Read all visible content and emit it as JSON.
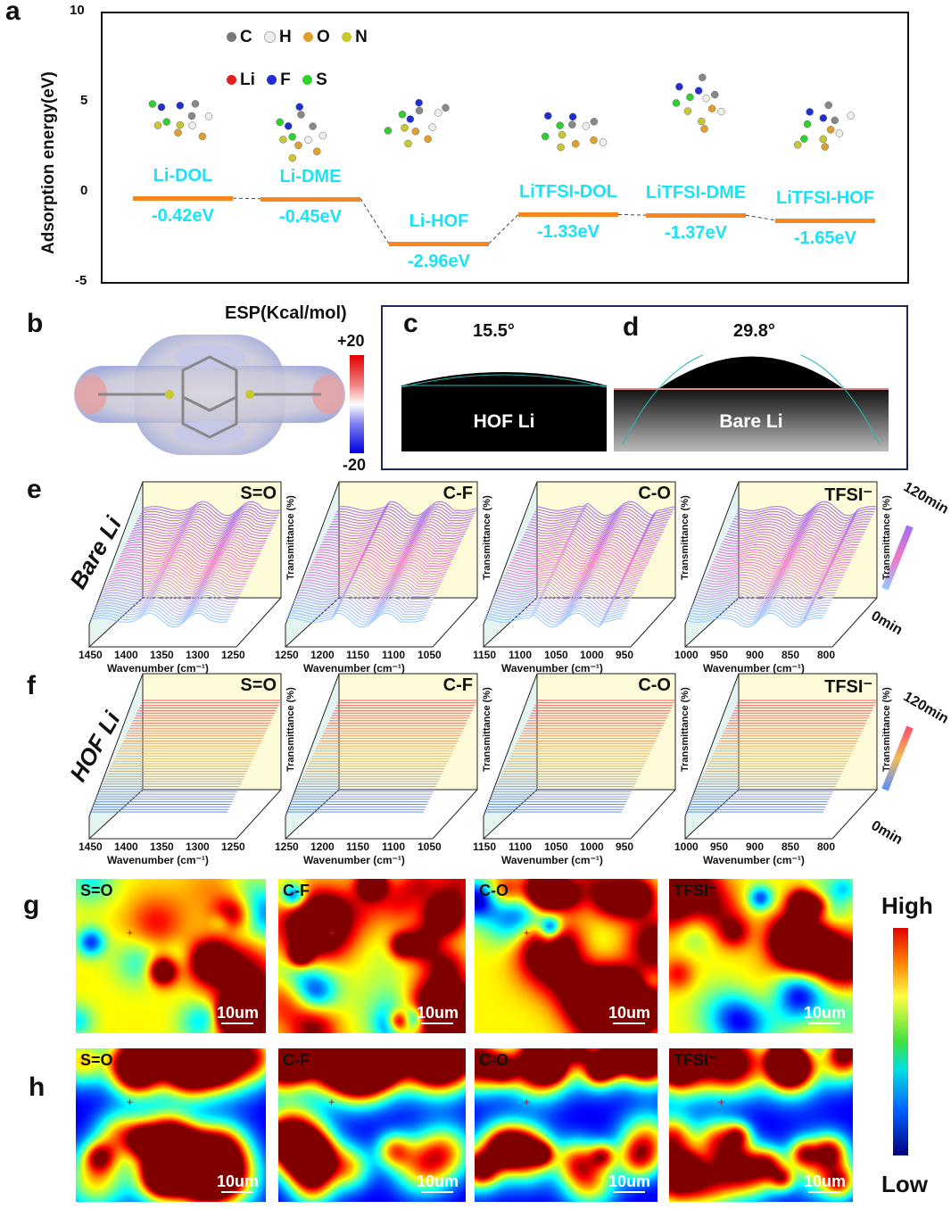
{
  "panel_labels": {
    "a": "a",
    "b": "b",
    "c": "c",
    "d": "d",
    "e": "e",
    "f": "f",
    "g": "g",
    "h": "h"
  },
  "chart_data": {
    "type": "energy-level",
    "ylabel": "Adsorption energy(eV)",
    "ylim": [
      -5,
      10
    ],
    "yticks": [
      "10",
      "5",
      "0",
      "-5"
    ],
    "categories": [
      "Li-DOL",
      "Li-DME",
      "Li-HOF",
      "LiTFSI-DOL",
      "LiTFSI-DME",
      "LiTFSI-HOF"
    ],
    "values": [
      -0.42,
      -0.45,
      -2.96,
      -1.33,
      -1.37,
      -1.65
    ],
    "value_labels": [
      "-0.42eV",
      "-0.45eV",
      "-2.96eV",
      "-1.33eV",
      "-1.37eV",
      "-1.65eV"
    ],
    "legend": [
      "C",
      "H",
      "O",
      "N",
      "Li",
      "F",
      "S"
    ],
    "legend_colors": [
      "#777777",
      "#eeeeee",
      "#e0a030",
      "#c8c830",
      "#e02020",
      "#2030d0",
      "#30d030"
    ]
  },
  "esp": {
    "title": "ESP(Kcal/mol)",
    "max": "+20",
    "min": "-20"
  },
  "contact": {
    "c_angle": "15.5°",
    "c_label": "HOF Li",
    "d_angle": "29.8°",
    "d_label": "Bare Li"
  },
  "ftir": {
    "rows": [
      {
        "label": "Bare Li"
      },
      {
        "label": "HOF Li"
      }
    ],
    "ylabel": "Transmittance (%)",
    "xlabel": "Wavenumber (cm⁻¹)",
    "time_max": "120min",
    "time_min": "0min",
    "panels": [
      {
        "name": "S=O",
        "ticks": [
          "1450",
          "1400",
          "1350",
          "1300",
          "1250"
        ]
      },
      {
        "name": "C-F",
        "ticks": [
          "1250",
          "1200",
          "1150",
          "1100",
          "1050"
        ]
      },
      {
        "name": "C-O",
        "ticks": [
          "1150",
          "1100",
          "1050",
          "1000",
          "950"
        ]
      },
      {
        "name": "TFSI⁻",
        "ticks": [
          "1000",
          "950",
          "900",
          "850",
          "800"
        ]
      }
    ]
  },
  "maps": {
    "labels": [
      "S=O",
      "C-F",
      "C-O",
      "TFSI⁻"
    ],
    "scale": "10um",
    "high": "High",
    "low": "Low"
  }
}
